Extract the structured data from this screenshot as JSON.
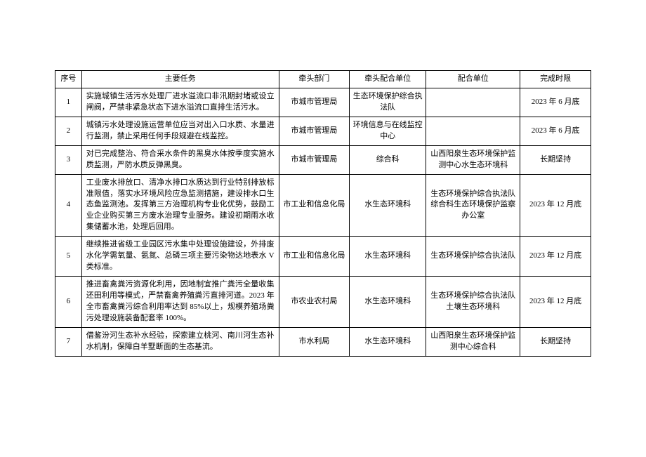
{
  "columns": [
    "序号",
    "主要任务",
    "牵头部门",
    "牵头配合单位",
    "配合单位",
    "完成时限"
  ],
  "rows": [
    {
      "seq": "1",
      "task": "实施城镇生活污水处理厂进水溢流口非汛期封堵或设立闸阀，严禁非紧急状态下进水溢流口直排生活污水。",
      "dept": "市城市管理局",
      "coop": "生态环境保护综合执法队",
      "other": "",
      "deadline": "2023 年 6 月底"
    },
    {
      "seq": "2",
      "task": "城镇污水处理设施运营单位应当对出入口水质、水量进行监测，禁止采用任何手段规避在线监控。",
      "dept": "市城市管理局",
      "coop": "环境信息与在线监控中心",
      "other": "",
      "deadline": "2023 年 6 月底"
    },
    {
      "seq": "3",
      "task": "对已完成整治、符合采水条件的黑臭水体按季度实施水质监测，严防水质反弹黑臭。",
      "dept": "市城市管理局",
      "coop": "综合科",
      "other": "山西阳泉生态环境保护监测中心水生态环境科",
      "deadline": "长期坚持"
    },
    {
      "seq": "4",
      "task": "工业废水排放口、清净水排口水质达到行业特别排放标准限值，落实水环境风险应急监测措施，建设排水口生态鱼监测池。发挥第三方治理机构专业化优势，鼓励工业企业购买第三方废水治理专业服务。建设初期雨水收集储蓄水池，处理后回用。",
      "dept": "市工业和信息化局",
      "coop": "水生态环境科",
      "other": "生态环境保护综合执法队综合科生态环境保护监察办公室",
      "deadline": "2023 年 12 月底"
    },
    {
      "seq": "5",
      "task": "继续推进省级工业园区污水集中处理设施建设，外排废水化学需氧量、氨氮、总磷三项主要污染物达地表水 V 类标准。",
      "dept": "市工业和信息化局",
      "coop": "水生态环境科",
      "other": "生态环境保护综合执法队",
      "deadline": "2023 年 12 月底"
    },
    {
      "seq": "6",
      "task": "推进畜禽粪污资源化利用，因地制宜推广粪污全量收集还田利用等模式，严禁畜禽养殖粪污直排河道。2023 年全市畜禽粪污综合利用率达到 85%以上，规模养殖场粪污处理设施装备配套率 100%。",
      "dept": "市农业农村局",
      "coop": "水生态环境科",
      "other": "生态环境保护综合执法队土壤生态环境科",
      "deadline": "2023 年 12 月底"
    },
    {
      "seq": "7",
      "task": "借鉴汾河生态补水经验，探索建立桃河、南川河生态补水机制，保障白羊墅断面的生态基流。",
      "dept": "市水利局",
      "coop": "水生态环境科",
      "other": "山西阳泉生态环境保护监测中心综合科",
      "deadline": "长期坚持"
    }
  ]
}
